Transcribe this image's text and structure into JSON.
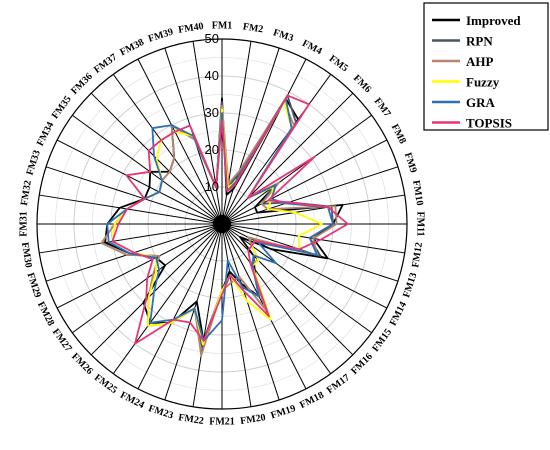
{
  "chart_data": {
    "type": "radar",
    "categories": [
      "FM1",
      "FM2",
      "FM3",
      "FM4",
      "FM5",
      "FM6",
      "FM7",
      "FM8",
      "FM9",
      "FM10",
      "FM11",
      "FM12",
      "FM13",
      "FM14",
      "FM15",
      "FM16",
      "FM17",
      "FM18",
      "FM19",
      "FM20",
      "FM21",
      "FM22",
      "FM23",
      "FM24",
      "FM25",
      "FM26",
      "FM27",
      "FM28",
      "FM29",
      "FM30",
      "FM31",
      "FM32",
      "FM33",
      "FM34",
      "FM35",
      "FM36",
      "FM37",
      "FM38",
      "FM39",
      "FM40"
    ],
    "r_ticks": [
      "0",
      "10",
      "20",
      "30",
      "40",
      "50"
    ],
    "rlim": [
      0,
      50
    ],
    "grid": true,
    "legend_position": "top-right",
    "series": [
      {
        "name": "Improved",
        "color": "#000000",
        "values": [
          34,
          8,
          10,
          38,
          35,
          10,
          18,
          10,
          10,
          33,
          30,
          25,
          30,
          15,
          6,
          12,
          15,
          22,
          17,
          13,
          18,
          32,
          22,
          30,
          33,
          30,
          19,
          20,
          26,
          32,
          31,
          28,
          22,
          22,
          24,
          20,
          22,
          30,
          24,
          10
        ]
      },
      {
        "name": "RPN",
        "color": "#4a5560",
        "values": [
          33,
          10,
          14,
          39,
          34,
          10,
          17,
          12,
          19,
          30,
          30,
          24,
          28,
          8,
          10,
          14,
          13,
          26,
          15,
          16,
          18,
          34,
          24,
          30,
          34,
          28,
          23,
          19,
          27,
          33,
          29,
          26,
          22,
          19,
          20,
          20,
          22,
          30,
          24,
          10
        ]
      },
      {
        "name": "AHP",
        "color": "#b8866b",
        "values": [
          32,
          11,
          15,
          37,
          33,
          10,
          19,
          12,
          13,
          31,
          31,
          25,
          27,
          8,
          10,
          14,
          13,
          26,
          15,
          16,
          18,
          36,
          24,
          30,
          34,
          28,
          23,
          19,
          27,
          33,
          29,
          26,
          22,
          19,
          20,
          20,
          22,
          30,
          24,
          10
        ]
      },
      {
        "name": "Fuzzy",
        "color": "#ffff00",
        "values": [
          31,
          10,
          12,
          37,
          32,
          10,
          17,
          15,
          13,
          20,
          27,
          21,
          22,
          10,
          10,
          14,
          14,
          29,
          22,
          14,
          18,
          33,
          24,
          30,
          34,
          28,
          22,
          20,
          25,
          30,
          29,
          26,
          22,
          19,
          20,
          25,
          28,
          28,
          25,
          10
        ]
      },
      {
        "name": "GRA",
        "color": "#2f6fb6",
        "values": [
          30,
          9,
          12,
          38,
          32,
          10,
          18,
          15,
          18,
          29,
          30,
          24,
          27,
          11,
          18,
          12,
          14,
          22,
          18,
          10,
          26,
          32,
          24,
          29,
          33,
          26,
          21,
          20,
          26,
          31,
          31,
          26,
          22,
          19,
          20,
          26,
          32,
          30,
          25,
          10
        ]
      },
      {
        "name": "TOPSIS",
        "color": "#e6367a",
        "values": [
          28,
          9,
          11,
          39,
          40,
          10,
          31,
          14,
          19,
          29,
          34,
          27,
          22,
          10,
          10,
          10,
          13,
          28,
          19,
          14,
          19,
          32,
          28,
          29,
          40,
          29,
          25,
          21,
          25,
          30,
          28,
          26,
          22,
          29,
          24,
          28,
          28,
          28,
          28,
          10
        ]
      }
    ]
  }
}
